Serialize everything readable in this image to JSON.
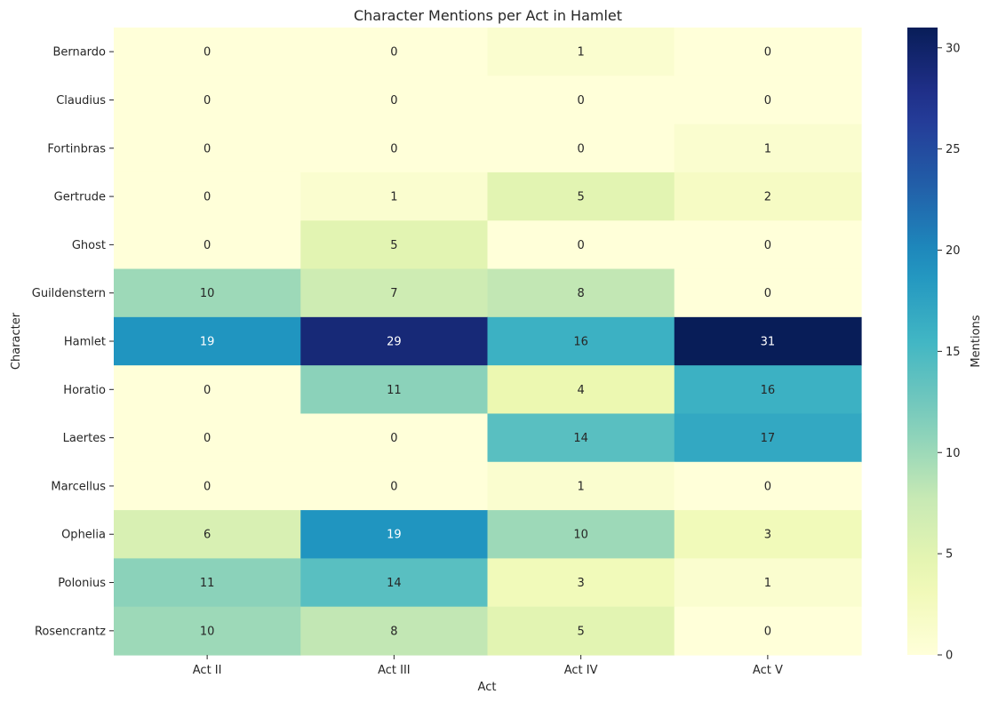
{
  "chart_data": {
    "type": "heatmap",
    "title": "Character Mentions per Act in Hamlet",
    "xlabel": "Act",
    "ylabel": "Character",
    "colorbar_label": "Mentions",
    "x_categories": [
      "Act II",
      "Act III",
      "Act IV",
      "Act V"
    ],
    "y_categories": [
      "Bernardo",
      "Claudius",
      "Fortinbras",
      "Gertrude",
      "Ghost",
      "Guildenstern",
      "Hamlet",
      "Horatio",
      "Laertes",
      "Marcellus",
      "Ophelia",
      "Polonius",
      "Rosencrantz"
    ],
    "values": [
      [
        0,
        0,
        1,
        0
      ],
      [
        0,
        0,
        0,
        0
      ],
      [
        0,
        0,
        0,
        1
      ],
      [
        0,
        1,
        5,
        2
      ],
      [
        0,
        5,
        0,
        0
      ],
      [
        10,
        7,
        8,
        0
      ],
      [
        19,
        29,
        16,
        31
      ],
      [
        0,
        11,
        4,
        16
      ],
      [
        0,
        0,
        14,
        17
      ],
      [
        0,
        0,
        1,
        0
      ],
      [
        6,
        19,
        10,
        3
      ],
      [
        11,
        14,
        3,
        1
      ],
      [
        10,
        8,
        5,
        0
      ]
    ],
    "color_range": [
      0,
      31
    ],
    "colorbar_ticks": [
      0,
      5,
      10,
      15,
      20,
      25,
      30
    ],
    "colormap": "YlGnBu",
    "grid": false
  }
}
